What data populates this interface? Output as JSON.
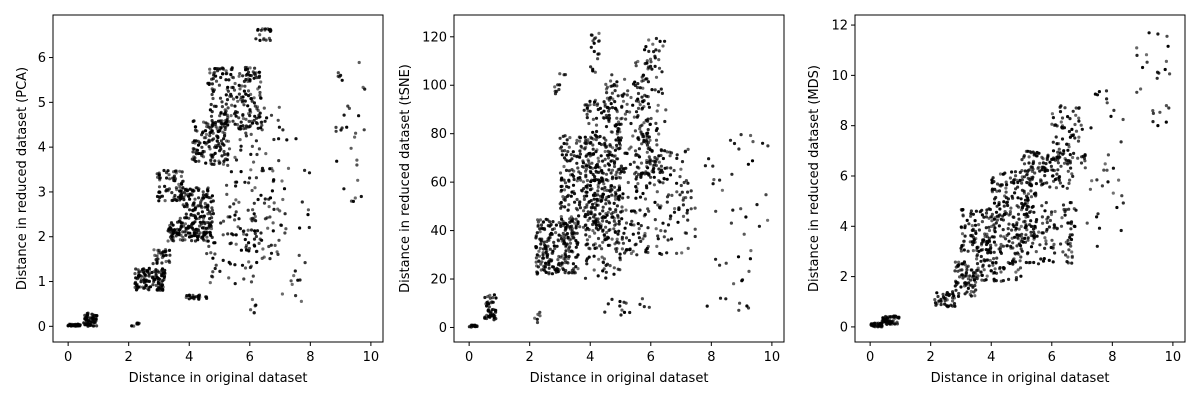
{
  "chart_data": [
    {
      "type": "scatter",
      "xlabel": "Distance in original dataset",
      "ylabel": "Distance in reduced dataset (PCA)",
      "xlim": [
        -0.5,
        10.4
      ],
      "ylim": [
        -0.35,
        6.95
      ],
      "xticks": [
        0,
        2,
        4,
        6,
        8,
        10
      ],
      "yticks": [
        0,
        1,
        2,
        3,
        4,
        5,
        6
      ],
      "grid": false,
      "marker_color": "#000000",
      "clusters": [
        {
          "x": [
            0.0,
            0.4
          ],
          "y": [
            0.0,
            0.05
          ],
          "n": 45
        },
        {
          "x": [
            0.5,
            0.95
          ],
          "y": [
            0.0,
            0.3
          ],
          "n": 55
        },
        {
          "x": [
            2.1,
            2.35
          ],
          "y": [
            0.0,
            0.1
          ],
          "n": 8
        },
        {
          "x": [
            2.2,
            3.2
          ],
          "y": [
            0.8,
            1.3
          ],
          "n": 120
        },
        {
          "x": [
            2.8,
            3.4
          ],
          "y": [
            1.4,
            1.75
          ],
          "n": 30
        },
        {
          "x": [
            3.3,
            4.8
          ],
          "y": [
            1.9,
            2.35
          ],
          "n": 140
        },
        {
          "x": [
            3.7,
            4.8
          ],
          "y": [
            2.4,
            3.1
          ],
          "n": 110
        },
        {
          "x": [
            2.9,
            3.8
          ],
          "y": [
            2.8,
            3.5
          ],
          "n": 70
        },
        {
          "x": [
            4.1,
            5.3
          ],
          "y": [
            3.6,
            4.6
          ],
          "n": 130
        },
        {
          "x": [
            4.6,
            6.4
          ],
          "y": [
            4.4,
            5.8
          ],
          "n": 190
        },
        {
          "x": [
            6.2,
            6.7
          ],
          "y": [
            6.35,
            6.65
          ],
          "n": 20
        },
        {
          "x": [
            3.8,
            4.6
          ],
          "y": [
            0.6,
            0.7
          ],
          "n": 22
        },
        {
          "x": [
            5.2,
            7.2
          ],
          "y": [
            1.5,
            4.9
          ],
          "n": 150
        },
        {
          "x": [
            4.5,
            6.3
          ],
          "y": [
            0.9,
            2.6
          ],
          "n": 55
        },
        {
          "x": [
            6.0,
            6.2
          ],
          "y": [
            0.3,
            0.6
          ],
          "n": 6
        },
        {
          "x": [
            7.0,
            8.0
          ],
          "y": [
            0.0,
            4.2
          ],
          "n": 22
        },
        {
          "x": [
            8.8,
            9.8
          ],
          "y": [
            2.7,
            5.9
          ],
          "n": 30
        }
      ]
    },
    {
      "type": "scatter",
      "xlabel": "Distance in original dataset",
      "ylabel": "Distance in reduced dataset (tSNE)",
      "xlim": [
        -0.5,
        10.4
      ],
      "ylim": [
        -6,
        129
      ],
      "xticks": [
        0,
        2,
        4,
        6,
        8,
        10
      ],
      "yticks": [
        0,
        20,
        40,
        60,
        80,
        100,
        120
      ],
      "grid": false,
      "marker_color": "#000000",
      "clusters": [
        {
          "x": [
            0.0,
            0.3
          ],
          "y": [
            0,
            1
          ],
          "n": 15
        },
        {
          "x": [
            0.5,
            0.9
          ],
          "y": [
            3,
            14
          ],
          "n": 45
        },
        {
          "x": [
            2.1,
            2.4
          ],
          "y": [
            0,
            9
          ],
          "n": 6
        },
        {
          "x": [
            2.2,
            3.6
          ],
          "y": [
            22,
            45
          ],
          "n": 220
        },
        {
          "x": [
            3.0,
            4.5
          ],
          "y": [
            40,
            80
          ],
          "n": 220
        },
        {
          "x": [
            3.8,
            5.0
          ],
          "y": [
            20,
            95
          ],
          "n": 260
        },
        {
          "x": [
            4.5,
            6.0
          ],
          "y": [
            30,
            105
          ],
          "n": 260
        },
        {
          "x": [
            5.5,
            6.5
          ],
          "y": [
            60,
            120
          ],
          "n": 120
        },
        {
          "x": [
            4.0,
            4.3
          ],
          "y": [
            105,
            122
          ],
          "n": 18
        },
        {
          "x": [
            2.8,
            3.2
          ],
          "y": [
            95,
            105
          ],
          "n": 10
        },
        {
          "x": [
            6.0,
            7.5
          ],
          "y": [
            30,
            75
          ],
          "n": 100
        },
        {
          "x": [
            7.8,
            9.9
          ],
          "y": [
            5,
            80
          ],
          "n": 45
        },
        {
          "x": [
            4.3,
            6.0
          ],
          "y": [
            5,
            12
          ],
          "n": 15
        }
      ]
    },
    {
      "type": "scatter",
      "xlabel": "Distance in original dataset",
      "ylabel": "Distance in reduced dataset (MDS)",
      "xlim": [
        -0.5,
        10.4
      ],
      "ylim": [
        -0.6,
        12.4
      ],
      "xticks": [
        0,
        2,
        4,
        6,
        8,
        10
      ],
      "yticks": [
        0,
        2,
        4,
        6,
        8,
        10,
        12
      ],
      "grid": false,
      "marker_color": "#000000",
      "clusters": [
        {
          "x": [
            0.0,
            0.4
          ],
          "y": [
            0.0,
            0.15
          ],
          "n": 40
        },
        {
          "x": [
            0.4,
            0.95
          ],
          "y": [
            0.1,
            0.45
          ],
          "n": 50
        },
        {
          "x": [
            2.1,
            2.8
          ],
          "y": [
            0.8,
            1.4
          ],
          "n": 40
        },
        {
          "x": [
            2.8,
            3.5
          ],
          "y": [
            1.2,
            2.6
          ],
          "n": 70
        },
        {
          "x": [
            3.0,
            4.0
          ],
          "y": [
            3.0,
            4.7
          ],
          "n": 80
        },
        {
          "x": [
            3.5,
            5.0
          ],
          "y": [
            1.8,
            3.6
          ],
          "n": 120
        },
        {
          "x": [
            4.0,
            5.5
          ],
          "y": [
            3.5,
            6.2
          ],
          "n": 170
        },
        {
          "x": [
            5.0,
            6.8
          ],
          "y": [
            2.5,
            5.0
          ],
          "n": 120
        },
        {
          "x": [
            5.0,
            6.7
          ],
          "y": [
            5.5,
            7.0
          ],
          "n": 110
        },
        {
          "x": [
            6.0,
            7.2
          ],
          "y": [
            6.5,
            8.8
          ],
          "n": 70
        },
        {
          "x": [
            7.0,
            8.4
          ],
          "y": [
            3.2,
            9.8
          ],
          "n": 35
        },
        {
          "x": [
            8.8,
            9.9
          ],
          "y": [
            8.0,
            11.8
          ],
          "n": 25
        }
      ]
    }
  ]
}
